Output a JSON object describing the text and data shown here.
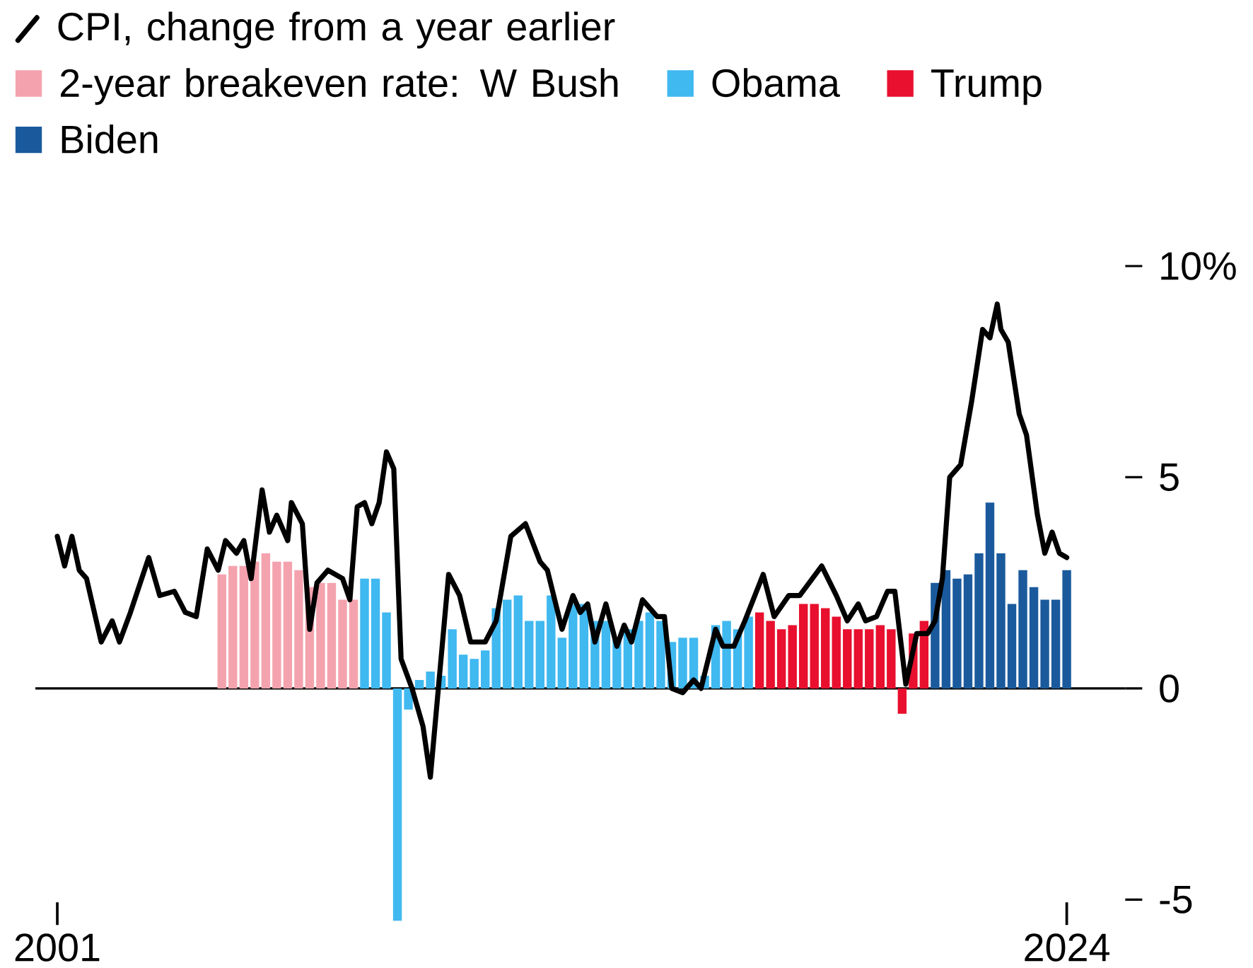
{
  "chart_data": {
    "type": "bar",
    "legend": "top left",
    "xlim": [
      "2000-07",
      "2025-05"
    ],
    "xticks": [
      "2001",
      "2024"
    ],
    "ylim": [
      -5.6,
      10
    ],
    "yticks": [
      {
        "value": 10,
        "label": "10%"
      },
      5,
      0,
      -5
    ],
    "ref_lines": [
      {
        "axis": "y",
        "value": 0,
        "color": "#000000"
      }
    ],
    "series": [
      {
        "name": "CPI, change from a year earlier",
        "type": "line",
        "color": "#000000",
        "x": [
          "2001-01",
          "2001-03",
          "2001-05",
          "2001-07",
          "2001-09",
          "2002-01",
          "2002-04",
          "2002-06",
          "2002-09",
          "2003-02",
          "2003-05",
          "2003-09",
          "2003-12",
          "2004-03",
          "2004-06",
          "2004-09",
          "2004-11",
          "2005-02",
          "2005-04",
          "2005-06",
          "2005-09",
          "2005-11",
          "2006-01",
          "2006-04",
          "2006-05",
          "2006-08",
          "2006-10",
          "2006-12",
          "2007-03",
          "2007-07",
          "2007-09",
          "2007-11",
          "2008-01",
          "2008-03",
          "2008-05",
          "2008-07",
          "2008-09",
          "2008-11",
          "2009-02",
          "2009-05",
          "2009-07",
          "2009-12",
          "2010-03",
          "2010-06",
          "2010-10",
          "2011-01",
          "2011-05",
          "2011-09",
          "2012-01",
          "2012-03",
          "2012-07",
          "2012-10",
          "2012-12",
          "2013-02",
          "2013-04",
          "2013-07",
          "2013-10",
          "2013-12",
          "2014-02",
          "2014-05",
          "2014-09",
          "2014-11",
          "2015-01",
          "2015-04",
          "2015-07",
          "2015-09",
          "2016-01",
          "2016-03",
          "2016-06",
          "2016-09",
          "2017-02",
          "2017-05",
          "2017-09",
          "2017-12",
          "2018-06",
          "2018-10",
          "2019-01",
          "2019-04",
          "2019-06",
          "2019-09",
          "2019-12",
          "2020-02",
          "2020-05",
          "2020-08",
          "2020-11",
          "2021-01",
          "2021-03",
          "2021-05",
          "2021-08",
          "2021-11",
          "2022-02",
          "2022-04",
          "2022-06",
          "2022-07",
          "2022-09",
          "2022-12",
          "2023-02",
          "2023-05",
          "2023-07",
          "2023-09",
          "2023-11",
          "2024-01"
        ],
        "values": [
          3.6,
          2.9,
          3.6,
          2.8,
          2.6,
          1.1,
          1.6,
          1.1,
          1.8,
          3.1,
          2.2,
          2.3,
          1.8,
          1.7,
          3.3,
          2.8,
          3.5,
          3.2,
          3.5,
          2.6,
          4.7,
          3.7,
          4.1,
          3.5,
          4.4,
          3.9,
          1.4,
          2.5,
          2.8,
          2.6,
          2.1,
          4.3,
          4.4,
          3.9,
          4.4,
          5.6,
          5.2,
          0.7,
          0,
          -0.9,
          -2.1,
          2.7,
          2.2,
          1.1,
          1.1,
          1.6,
          3.6,
          3.9,
          3.0,
          2.8,
          1.4,
          2.2,
          1.8,
          2.0,
          1.1,
          2.0,
          1.0,
          1.5,
          1.1,
          2.1,
          1.7,
          1.7,
          0,
          -0.1,
          0.2,
          0,
          1.4,
          1.0,
          1.0,
          1.6,
          2.7,
          1.7,
          2.2,
          2.2,
          2.9,
          2.2,
          1.6,
          2.0,
          1.6,
          1.7,
          2.3,
          2.3,
          0.1,
          1.3,
          1.3,
          1.6,
          2.6,
          5.0,
          5.3,
          6.8,
          8.5,
          8.3,
          9.1,
          8.5,
          8.2,
          6.5,
          6.0,
          4.1,
          3.2,
          3.7,
          3.2,
          3.1
        ]
      },
      {
        "name": "2-year breakeven rate: W Bush",
        "color": "#f4a3ae",
        "x": [
          "2004-10",
          "2005-01",
          "2005-04",
          "2005-07",
          "2005-10",
          "2006-01",
          "2006-04",
          "2006-07",
          "2006-10",
          "2007-01",
          "2007-04",
          "2007-07",
          "2007-10"
        ],
        "values": [
          2.7,
          2.9,
          2.9,
          3.0,
          3.2,
          3.0,
          3.0,
          2.8,
          2.4,
          2.5,
          2.5,
          2.1,
          2.1
        ]
      },
      {
        "name": "Obama",
        "color": "#40b8f0",
        "x": [
          "2008-01",
          "2008-04",
          "2008-07",
          "2008-10",
          "2009-01",
          "2009-04",
          "2009-07",
          "2009-10",
          "2010-01",
          "2010-04",
          "2010-07",
          "2010-10",
          "2011-01",
          "2011-04",
          "2011-07",
          "2011-10",
          "2012-01",
          "2012-04",
          "2012-07",
          "2012-10",
          "2013-01",
          "2013-04",
          "2013-07",
          "2013-10",
          "2014-01",
          "2014-04",
          "2014-07",
          "2014-10",
          "2015-01",
          "2015-04",
          "2015-07",
          "2015-10",
          "2016-01",
          "2016-04",
          "2016-07",
          "2016-10"
        ],
        "values": [
          2.6,
          2.6,
          1.8,
          -5.5,
          -0.5,
          0.2,
          0.4,
          0.3,
          1.4,
          0.8,
          0.7,
          0.9,
          1.9,
          2.1,
          2.2,
          1.6,
          1.6,
          2.2,
          1.2,
          2.0,
          2.0,
          1.6,
          1.6,
          1.2,
          1.4,
          1.6,
          1.8,
          1.6,
          1.1,
          1.2,
          1.2,
          0.3,
          1.5,
          1.6,
          1.4,
          1.7
        ]
      },
      {
        "name": "Trump",
        "color": "#e8102e",
        "x": [
          "2017-01",
          "2017-04",
          "2017-07",
          "2017-10",
          "2018-01",
          "2018-04",
          "2018-07",
          "2018-10",
          "2019-01",
          "2019-04",
          "2019-07",
          "2019-10",
          "2020-01",
          "2020-04",
          "2020-07",
          "2020-10"
        ],
        "values": [
          1.8,
          1.6,
          1.4,
          1.5,
          2.0,
          2.0,
          1.9,
          1.7,
          1.4,
          1.4,
          1.4,
          1.5,
          1.4,
          -0.6,
          1.3,
          1.6
        ]
      },
      {
        "name": "Biden",
        "color": "#1a5a9c",
        "x": [
          "2021-01",
          "2021-04",
          "2021-07",
          "2021-10",
          "2022-01",
          "2022-04",
          "2022-07",
          "2022-10",
          "2023-01",
          "2023-04",
          "2023-07",
          "2023-10",
          "2024-01"
        ],
        "values": [
          2.5,
          2.8,
          2.6,
          2.7,
          3.2,
          4.4,
          3.2,
          2.0,
          2.8,
          2.4,
          2.1,
          2.1,
          2.8
        ]
      }
    ]
  }
}
